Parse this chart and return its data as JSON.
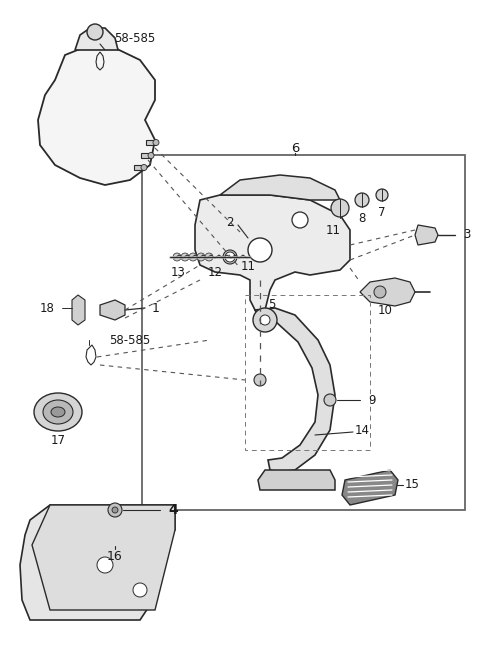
{
  "bg_color": "#ffffff",
  "lc": "#2a2a2a",
  "fig_w": 4.8,
  "fig_h": 6.47,
  "dpi": 100,
  "xlim": [
    0,
    480
  ],
  "ylim": [
    0,
    647
  ]
}
